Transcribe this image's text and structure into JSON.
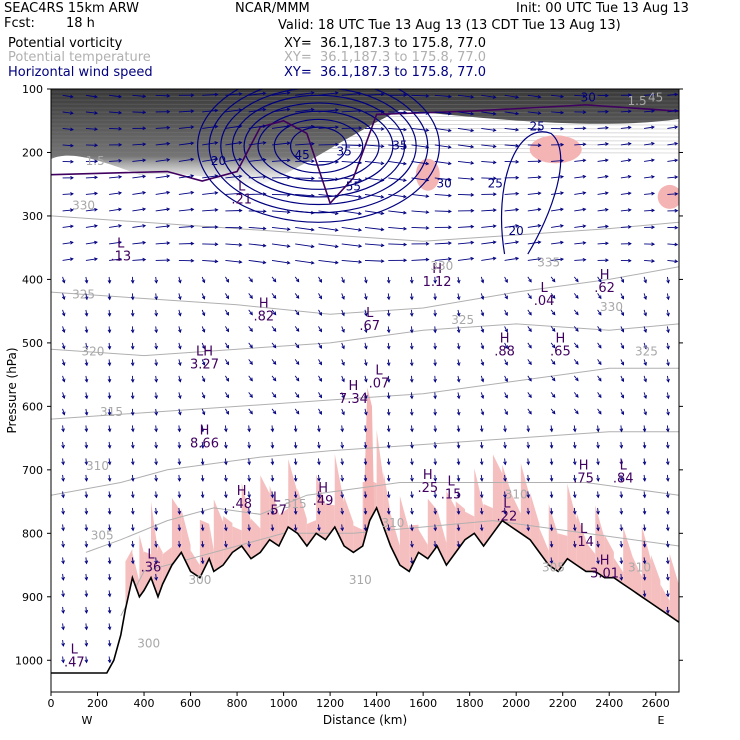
{
  "header": {
    "model": "SEAC4RS 15km ARW",
    "fcst_label": "Fcst:",
    "fcst_value": "18 h",
    "center": "NCAR/MMM",
    "init": "Init: 00 UTC Tue 13 Aug 13",
    "valid": "Valid: 18 UTC Tue 13 Aug 13 (13 CDT Tue 13 Aug 13)"
  },
  "fields": [
    {
      "name": "Potential vorticity",
      "xy": "XY=  36.1,187.3 to 175.8, 77.0",
      "color": "#000000"
    },
    {
      "name": "Potential temperature",
      "xy": "XY=  36.1,187.3 to 175.8, 77.0",
      "color": "#b0b0b0"
    },
    {
      "name": "Horizontal wind speed",
      "xy": "XY=  36.1,187.3 to 175.8, 77.0",
      "color": "#000080"
    }
  ],
  "colors": {
    "pv_fill_dark": "#3a3a3a",
    "positive_fill": "#f4b4b4",
    "theta_contour": "#b0b0b0",
    "wind_contour": "#000080",
    "pv_contour": "#400060",
    "terrain": "#000000",
    "vectors": "#000080"
  },
  "chart_data": {
    "type": "cross-section",
    "xlabel": "Distance (km)",
    "ylabel": "Pressure (hPa)",
    "xlim": [
      0,
      2700
    ],
    "ylim": [
      1050,
      100
    ],
    "x_ticks": [
      0,
      200,
      400,
      600,
      800,
      1000,
      1200,
      1400,
      1600,
      1800,
      2000,
      2200,
      2400,
      2600
    ],
    "y_ticks": [
      100,
      200,
      300,
      400,
      500,
      600,
      700,
      800,
      900,
      1000
    ],
    "x_end_labels": [
      "W",
      "E"
    ],
    "terrain": {
      "x": [
        0,
        240,
        270,
        300,
        320,
        350,
        380,
        400,
        430,
        460,
        480,
        520,
        560,
        600,
        640,
        680,
        700,
        740,
        780,
        820,
        860,
        900,
        940,
        980,
        1020,
        1060,
        1100,
        1140,
        1180,
        1220,
        1260,
        1300,
        1340,
        1370,
        1400,
        1430,
        1460,
        1500,
        1540,
        1580,
        1620,
        1660,
        1700,
        1740,
        1780,
        1820,
        1860,
        1900,
        1940,
        1980,
        2020,
        2060,
        2100,
        2140,
        2180,
        2220,
        2260,
        2300,
        2340,
        2380,
        2420,
        2460,
        2500,
        2540,
        2580,
        2620,
        2660,
        2700
      ],
      "p": [
        1020,
        1020,
        1000,
        960,
        920,
        870,
        900,
        890,
        870,
        900,
        880,
        850,
        830,
        860,
        870,
        840,
        860,
        850,
        830,
        820,
        840,
        830,
        810,
        820,
        790,
        800,
        820,
        800,
        810,
        790,
        820,
        830,
        820,
        780,
        760,
        790,
        820,
        850,
        860,
        830,
        840,
        820,
        850,
        830,
        810,
        800,
        820,
        800,
        780,
        790,
        800,
        810,
        830,
        850,
        860,
        840,
        850,
        860,
        860,
        870,
        870,
        880,
        890,
        900,
        910,
        920,
        930,
        940
      ]
    },
    "pressure_labels": [
      {
        "type": "L",
        "value": ".47",
        "x": 100,
        "p": 1010
      },
      {
        "type": "L",
        "value": ".13",
        "x": 300,
        "p": 370
      },
      {
        "type": "L",
        "value": ".21",
        "x": 820,
        "p": 280
      },
      {
        "type": "H",
        "value": ".82",
        "x": 915,
        "p": 465
      },
      {
        "type": "L",
        "value": ".67",
        "x": 1370,
        "p": 480
      },
      {
        "type": "LH",
        "value": "3.27",
        "x": 660,
        "p": 540
      },
      {
        "type": "L",
        "value": ".07",
        "x": 1410,
        "p": 570
      },
      {
        "type": "H",
        "value": "7.34",
        "x": 1300,
        "p": 595
      },
      {
        "type": "H",
        "value": "8.66",
        "x": 660,
        "p": 665
      },
      {
        "type": "H",
        "value": "1.12",
        "x": 1660,
        "p": 410
      },
      {
        "type": "L",
        "value": ".04",
        "x": 2120,
        "p": 440
      },
      {
        "type": "H",
        "value": ".62",
        "x": 2380,
        "p": 420
      },
      {
        "type": "H",
        "value": ".88",
        "x": 1950,
        "p": 520
      },
      {
        "type": "H",
        "value": ".65",
        "x": 2190,
        "p": 520
      },
      {
        "type": "H",
        "value": ".48",
        "x": 820,
        "p": 760
      },
      {
        "type": "L",
        "value": ".57",
        "x": 970,
        "p": 770
      },
      {
        "type": "H",
        "value": ".49",
        "x": 1170,
        "p": 755
      },
      {
        "type": "H",
        "value": ".25",
        "x": 1620,
        "p": 735
      },
      {
        "type": "L",
        "value": ".15",
        "x": 1720,
        "p": 745
      },
      {
        "type": "L",
        "value": ".22",
        "x": 1960,
        "p": 780
      },
      {
        "type": "H",
        "value": ".75",
        "x": 2290,
        "p": 720
      },
      {
        "type": "L",
        "value": ".84",
        "x": 2460,
        "p": 720
      },
      {
        "type": "L",
        "value": ".14",
        "x": 2290,
        "p": 820
      },
      {
        "type": "H",
        "value": "3.01",
        "x": 2380,
        "p": 870
      },
      {
        "type": "L",
        "value": ".36",
        "x": 430,
        "p": 860
      }
    ],
    "theta_labels": [
      {
        "value": "330",
        "x": 140,
        "p": 290
      },
      {
        "value": "325",
        "x": 140,
        "p": 430
      },
      {
        "value": "320",
        "x": 180,
        "p": 520
      },
      {
        "value": "315",
        "x": 260,
        "p": 615
      },
      {
        "value": "310",
        "x": 200,
        "p": 700
      },
      {
        "value": "305",
        "x": 220,
        "p": 810
      },
      {
        "value": "300",
        "x": 420,
        "p": 980
      },
      {
        "value": "330",
        "x": 1680,
        "p": 385
      },
      {
        "value": "325",
        "x": 1770,
        "p": 470
      },
      {
        "value": "335",
        "x": 2140,
        "p": 380
      },
      {
        "value": "330",
        "x": 2410,
        "p": 450
      },
      {
        "value": "325",
        "x": 2560,
        "p": 520
      },
      {
        "value": "310",
        "x": 2000,
        "p": 745
      },
      {
        "value": "315",
        "x": 1050,
        "p": 760
      },
      {
        "value": "310",
        "x": 1470,
        "p": 790
      },
      {
        "value": "305",
        "x": 2160,
        "p": 860
      },
      {
        "value": "310",
        "x": 2530,
        "p": 860
      },
      {
        "value": "310",
        "x": 1330,
        "p": 880
      },
      {
        "value": "300",
        "x": 640,
        "p": 880
      },
      {
        "value": "1.5",
        "x": 190,
        "p": 220
      },
      {
        "value": "1.5",
        "x": 2520,
        "p": 125
      },
      {
        "value": "45",
        "x": 2600,
        "p": 120
      }
    ],
    "wind_labels": [
      {
        "value": "20",
        "x": 720,
        "p": 220
      },
      {
        "value": "45",
        "x": 1080,
        "p": 210
      },
      {
        "value": "35",
        "x": 1500,
        "p": 195
      },
      {
        "value": "30",
        "x": 1690,
        "p": 255
      },
      {
        "value": "25",
        "x": 1910,
        "p": 255
      },
      {
        "value": "20",
        "x": 2000,
        "p": 330
      },
      {
        "value": "25",
        "x": 2090,
        "p": 165
      },
      {
        "value": "35",
        "x": 1260,
        "p": 205
      },
      {
        "value": "30",
        "x": 2310,
        "p": 120
      },
      {
        "value": "55",
        "x": 1300,
        "p": 260
      }
    ]
  }
}
